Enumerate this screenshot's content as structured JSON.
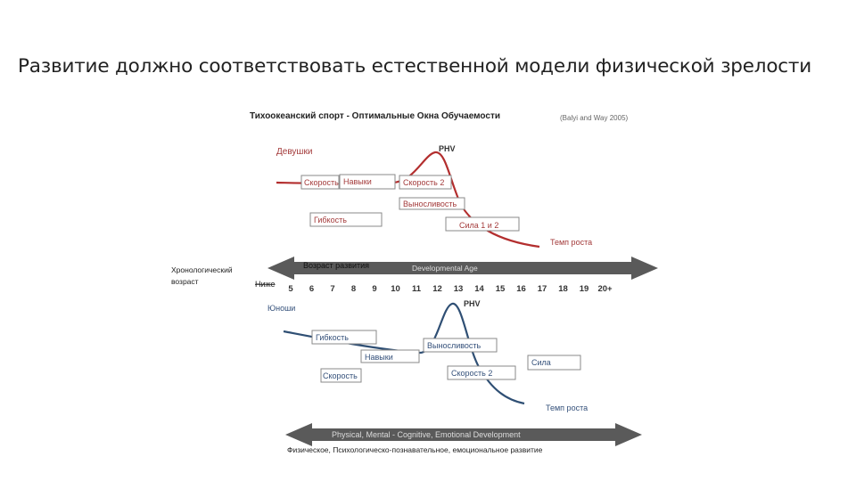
{
  "slide_title": "Развитие должно соответствовать естественной модели физической зрелости",
  "figure": {
    "title": "Тихоокеанский спорт - Оптимальные Окна Обучаемости",
    "source": "(Balyi and Way 2005)",
    "girls": {
      "label": "Девушки",
      "peak_label": "PHV",
      "growth_label": "Темп роста",
      "boxes": {
        "speed1": "Скорость",
        "skills": "Навыки",
        "speed2": "Скорость 2",
        "endurance": "Выносливость",
        "flexibility": "Гибкость",
        "strength": "Сила 1 и 2"
      }
    },
    "age_axis": {
      "left_label_line1": "Хронологический",
      "left_label_line2": "возраст",
      "lower_label": "Ниже",
      "arrow_label_ru": "Возраст развития",
      "arrow_label_en": "Developmental Age",
      "ticks": [
        "5",
        "6",
        "7",
        "8",
        "9",
        "10",
        "11",
        "12",
        "13",
        "14",
        "15",
        "16",
        "17",
        "18",
        "19",
        "20+"
      ]
    },
    "boys": {
      "label": "Юноши",
      "peak_label": "PHV",
      "growth_label": "Темп роста",
      "boxes": {
        "flexibility": "Гибкость",
        "skills": "Навыки",
        "endurance": "Выносливость",
        "speed1": "Скорость",
        "speed2": "Скорость 2",
        "strength": "Сила"
      }
    },
    "bottom_arrow": {
      "label_en": "Physical, Mental - Cognitive, Emotional Development",
      "caption_ru": "Физическое, Психологическо-познавательное, емоциональное развитие"
    }
  },
  "colors": {
    "girls_curve": "#b32e2e",
    "boys_curve": "#2f4f74",
    "arrow": "#5a5a5a",
    "box_border": "#8a8a8a"
  }
}
